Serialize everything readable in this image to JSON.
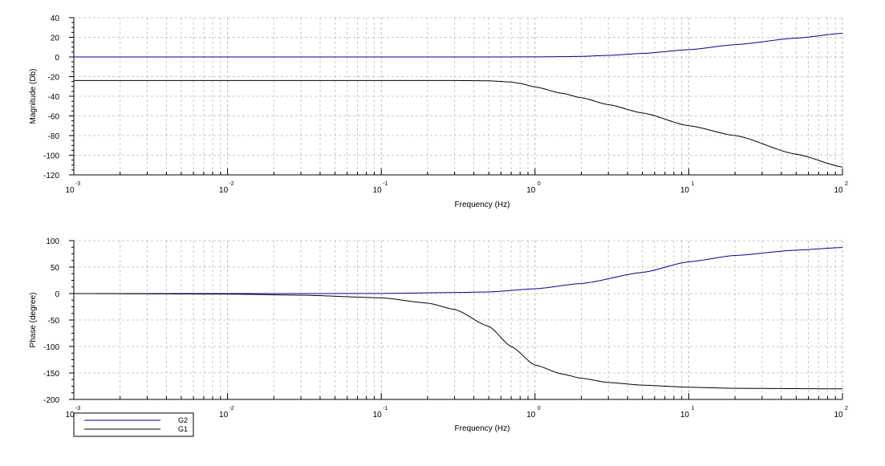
{
  "chart_data": [
    {
      "type": "line",
      "title": "",
      "xlabel": "Frequency (Hz)",
      "ylabel": "Magnitude (Db)",
      "xscale": "log",
      "xlim": [
        0.001,
        100
      ],
      "ylim": [
        -120,
        40
      ],
      "yticks": [
        40,
        20,
        0,
        -20,
        -40,
        -60,
        -80,
        -100,
        -120
      ],
      "grid": true,
      "series": [
        {
          "name": "G2",
          "color": "#0000a0",
          "x": [
            0.001,
            0.01,
            0.1,
            0.5,
            1,
            1.5,
            2,
            3,
            5,
            10,
            20,
            50,
            100
          ],
          "y": [
            0,
            0,
            0,
            0,
            0.1,
            0.3,
            0.6,
            1.6,
            3.6,
            7.4,
            12.5,
            19.2,
            24
          ]
        },
        {
          "name": "G1",
          "color": "#000000",
          "x": [
            0.001,
            0.01,
            0.1,
            0.3,
            0.5,
            0.7,
            0.8,
            1,
            1.5,
            2,
            3,
            5,
            10,
            20,
            50,
            100
          ],
          "y": [
            -24,
            -24,
            -24,
            -24,
            -24.3,
            -25.5,
            -27,
            -30.5,
            -37,
            -41.5,
            -48.5,
            -57,
            -70,
            -80,
            -99,
            -112
          ]
        }
      ],
      "x_tick_bases": [
        "10",
        "10",
        "10",
        "10",
        "10",
        "10"
      ],
      "x_tick_exponents": [
        "-3",
        "-2",
        "-1",
        "0",
        "1",
        "2"
      ]
    },
    {
      "type": "line",
      "title": "",
      "xlabel": "Frequency (Hz)",
      "ylabel": "Phase (degree)",
      "xscale": "log",
      "xlim": [
        0.001,
        100
      ],
      "ylim": [
        -200,
        100
      ],
      "yticks": [
        100,
        50,
        0,
        -50,
        -100,
        -150,
        -200
      ],
      "grid": true,
      "series": [
        {
          "name": "G2",
          "color": "#0000a0",
          "x": [
            0.001,
            0.01,
            0.05,
            0.1,
            0.3,
            0.5,
            1,
            2,
            5,
            10,
            20,
            50,
            100
          ],
          "y": [
            0,
            0,
            0.1,
            0.2,
            2,
            3,
            9,
            19,
            40,
            60,
            72,
            82,
            87
          ]
        },
        {
          "name": "G1",
          "color": "#000000",
          "x": [
            0.001,
            0.01,
            0.03,
            0.1,
            0.2,
            0.3,
            0.5,
            0.7,
            1,
            1.5,
            2,
            3,
            5,
            10,
            20,
            100
          ],
          "y": [
            0,
            -1,
            -3,
            -8,
            -18,
            -30,
            -62,
            -100,
            -135,
            -152,
            -160,
            -168,
            -173,
            -177,
            -179,
            -180
          ]
        }
      ],
      "x_tick_bases": [
        "10",
        "10",
        "10",
        "10",
        "10",
        "10"
      ],
      "x_tick_exponents": [
        "-3",
        "-2",
        "-1",
        "0",
        "1",
        "2"
      ],
      "legend": {
        "placement": "bottom-left",
        "entries": [
          {
            "label": "G2",
            "color": "#0000a0"
          },
          {
            "label": "G1",
            "color": "#000000"
          }
        ]
      }
    }
  ]
}
